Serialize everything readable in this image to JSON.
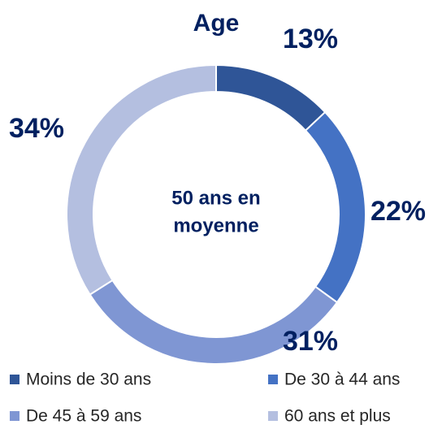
{
  "chart_data": {
    "type": "pie",
    "title": "Age",
    "annotation": [
      "50 ans en",
      "moyenne"
    ],
    "categories": [
      "Moins de 30 ans",
      "De 30 à 44 ans",
      "De 45 à 59 ans",
      "60 ans et plus"
    ],
    "values": [
      13,
      22,
      31,
      34
    ],
    "value_labels": [
      "13%",
      "22%",
      "31%",
      "34%"
    ],
    "colors": [
      "#2f5597",
      "#4472c4",
      "#7f96d3",
      "#b4bfe0"
    ]
  }
}
